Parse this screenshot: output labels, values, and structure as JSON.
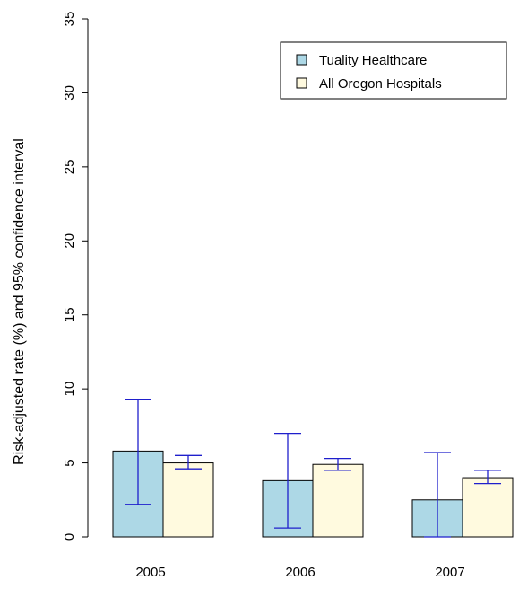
{
  "chart_data": {
    "type": "bar",
    "title": "",
    "xlabel": "",
    "ylabel": "Risk-adjusted rate (%) and 95% confidence interval",
    "ylim": [
      0,
      35
    ],
    "yticks": [
      0,
      5,
      10,
      15,
      20,
      25,
      30,
      35
    ],
    "categories": [
      "2005",
      "2006",
      "2007"
    ],
    "series": [
      {
        "name": "Tuality Healthcare",
        "color": "#add8e6",
        "values": [
          5.8,
          3.8,
          2.5
        ],
        "ci_low": [
          2.2,
          0.6,
          0.0
        ],
        "ci_high": [
          9.3,
          7.0,
          5.7
        ]
      },
      {
        "name": "All Oregon Hospitals",
        "color": "#fffadf",
        "values": [
          5.0,
          4.9,
          4.0
        ],
        "ci_low": [
          4.6,
          4.5,
          3.6
        ],
        "ci_high": [
          5.5,
          5.3,
          4.5
        ]
      }
    ],
    "error_bar_color": "#1f1fcc",
    "legend_position": "top-right",
    "grid": false
  }
}
